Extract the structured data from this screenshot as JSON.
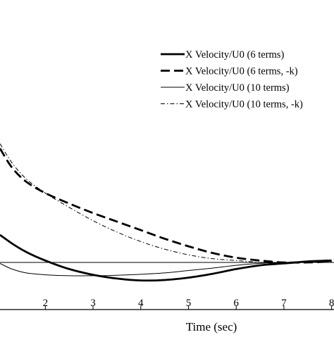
{
  "chart_data": {
    "type": "line",
    "xlabel": "Time (sec)",
    "x_ticks": [
      "2",
      "3",
      "4",
      "5",
      "6",
      "7",
      "8"
    ],
    "x_tick_values": [
      2,
      3,
      4,
      5,
      6,
      7,
      8
    ],
    "xlim": [
      1.05,
      8.05
    ],
    "grid": false,
    "legend_position": "top-right",
    "reference_line_y": 0,
    "series": [
      {
        "name": "X Velocity/U0 (6 terms)",
        "style": "thick-solid",
        "x": [
          1.05,
          1.3,
          1.6,
          2.0,
          2.5,
          3.0,
          3.5,
          4.0,
          4.5,
          5.0,
          5.5,
          6.0,
          6.5,
          7.0,
          7.5,
          8.0
        ],
        "y": [
          0.29,
          0.2,
          0.11,
          0.02,
          -0.07,
          -0.13,
          -0.17,
          -0.19,
          -0.185,
          -0.16,
          -0.12,
          -0.07,
          -0.03,
          -0.01,
          0.01,
          0.02
        ]
      },
      {
        "name": "X Velocity/U0 (6 terms, -k)",
        "style": "thick-dashed",
        "x": [
          1.05,
          1.3,
          1.6,
          2.0,
          2.5,
          3.0,
          3.5,
          4.0,
          4.5,
          5.0,
          5.5,
          6.0,
          6.5,
          7.0,
          7.5,
          8.0
        ],
        "y": [
          1.2,
          1.0,
          0.85,
          0.73,
          0.62,
          0.52,
          0.43,
          0.34,
          0.25,
          0.17,
          0.1,
          0.05,
          0.02,
          0.0,
          0.0,
          0.01
        ]
      },
      {
        "name": "X Velocity/U0 (10 terms)",
        "style": "thin-solid",
        "x": [
          1.05,
          1.3,
          1.6,
          2.0,
          2.5,
          3.0,
          3.5,
          4.0,
          4.5,
          5.0,
          5.5,
          6.0,
          6.5,
          7.0,
          7.5,
          8.0
        ],
        "y": [
          -0.01,
          -0.07,
          -0.11,
          -0.13,
          -0.14,
          -0.14,
          -0.135,
          -0.125,
          -0.11,
          -0.085,
          -0.06,
          -0.03,
          -0.01,
          0.0,
          0.01,
          0.01
        ]
      },
      {
        "name": "X Velocity/U0 (10 terms, -k)",
        "style": "thin-dashdot",
        "x": [
          1.05,
          1.3,
          1.6,
          2.0,
          2.5,
          3.0,
          3.5,
          4.0,
          4.5,
          5.0,
          5.5,
          6.0,
          6.5,
          7.0,
          7.5,
          8.0
        ],
        "y": [
          1.25,
          1.05,
          0.88,
          0.73,
          0.58,
          0.44,
          0.32,
          0.22,
          0.14,
          0.08,
          0.04,
          0.02,
          0.0,
          -0.01,
          0.0,
          0.01
        ]
      }
    ]
  }
}
